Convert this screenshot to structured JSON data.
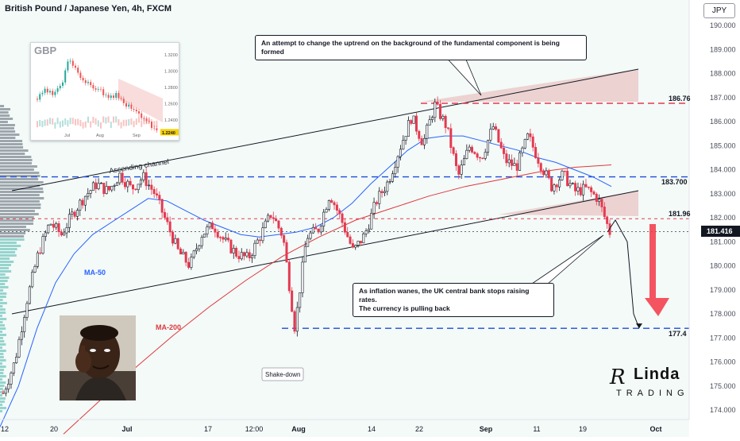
{
  "header": {
    "title": "British Pound / Japanese Yen, 4h, FXCM",
    "currency": "JPY"
  },
  "annotations": {
    "top_note": "An attempt to change the uptrend on the background of the fundamental component is being formed",
    "bottom_note_line1": "As inflation wanes, the UK central bank stops raising rates.",
    "bottom_note_line2": "The currency is pulling back",
    "ascending_channel": "Ascending channel",
    "ma50": "MA-50",
    "ma200": "MA-200",
    "shakedown": "Shake-down"
  },
  "levels": {
    "level_top": "186.76",
    "level_mid": "183.700",
    "level_support": "181.96",
    "level_target": "177.4",
    "current_price": "181.416"
  },
  "inset": {
    "label": "GBP",
    "y_ticks": [
      "1.3200",
      "1.3000",
      "1.2800",
      "1.2600",
      "1.2400"
    ],
    "x_ticks": [
      "Jul",
      "Aug",
      "Sep"
    ],
    "last_value": "1.2240"
  },
  "logo": {
    "text_main": "Linda",
    "text_r": "R",
    "text_sub": "TRADING"
  },
  "colors": {
    "bull": "#26a69a",
    "bear": "#ef5350",
    "candle_up": "#131722",
    "candle_down": "#e53950",
    "ma50": "#2962ff",
    "ma200": "#e0383e",
    "level_blue": "#1e4bd8",
    "level_red": "#e53950",
    "arrow_red": "#f23645",
    "background_fill": "#e9f6f2"
  },
  "chart_data": {
    "type": "candlestick",
    "title": "British Pound / Japanese Yen, 4h, FXCM",
    "x_ticks": [
      "12",
      "20",
      "Jul",
      "17",
      "12:00",
      "Aug",
      "14",
      "22",
      "Sep",
      "11",
      "19",
      "Oct"
    ],
    "y_ticks": [
      174.0,
      175.0,
      176.0,
      177.0,
      178.0,
      179.0,
      180.0,
      181.0,
      182.0,
      183.0,
      184.0,
      185.0,
      186.0,
      187.0,
      188.0,
      189.0,
      190.0
    ],
    "ylim": [
      173.6,
      190.3
    ],
    "close_path": [
      174.7,
      176.0,
      178.5,
      180.5,
      181.8,
      181.3,
      182.2,
      182.9,
      183.4,
      183.1,
      183.8,
      183.2,
      183.7,
      183.0,
      181.8,
      180.6,
      180.0,
      181.3,
      181.7,
      181.0,
      180.5,
      180.3,
      181.2,
      182.2,
      181.2,
      177.4,
      181.2,
      181.5,
      183.0,
      181.9,
      180.6,
      181.3,
      182.7,
      183.5,
      184.9,
      186.2,
      185.1,
      186.7,
      185.8,
      183.7,
      185.0,
      184.5,
      185.8,
      184.4,
      184.1,
      185.4,
      184.3,
      183.3,
      183.8,
      183.1,
      183.2,
      182.8,
      181.4
    ],
    "ma50_path": [
      173.3,
      175.0,
      177.4,
      179.3,
      180.5,
      181.3,
      181.8,
      182.3,
      182.8,
      182.7,
      182.3,
      181.9,
      181.6,
      181.3,
      181.2,
      181.3,
      181.4,
      181.6,
      182.0,
      182.6,
      183.4,
      184.1,
      184.8,
      185.3,
      185.4,
      185.4,
      185.2,
      185.0,
      184.8,
      184.5,
      184.3,
      184.0,
      183.7,
      183.3
    ],
    "ma200_path": [
      173.0,
      174.4,
      175.8,
      177.1,
      178.3,
      179.4,
      180.4,
      181.2,
      181.9,
      182.4,
      182.9,
      183.3,
      183.6,
      183.9,
      184.1,
      184.2
    ],
    "projection_path": [
      181.4,
      181.9,
      181.0,
      178.0,
      177.4
    ],
    "levels": [
      186.76,
      183.7,
      181.96,
      177.4
    ],
    "current_price": 181.416
  }
}
